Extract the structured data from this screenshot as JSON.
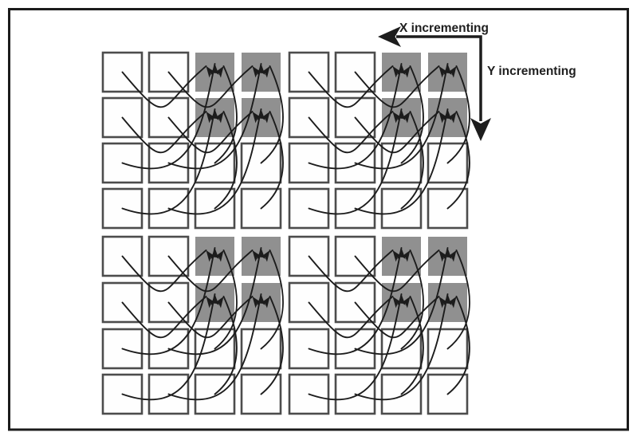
{
  "figure": {
    "background_color": "#ffffff",
    "border_color": "#1b1b1b"
  },
  "annotations": {
    "x_label": "X incrementing",
    "y_label": "Y incrementing",
    "x_arrow_direction": "left",
    "y_arrow_direction": "down",
    "color": "#1d1d1d"
  },
  "grid": {
    "rows": 8,
    "cols": 8,
    "quadrants": 4,
    "white_cell_fill": "#fefefe",
    "gray_cell_fill": "#909090",
    "cell_stroke": "#4c4c4c",
    "gray_cells": [
      [
        0,
        2
      ],
      [
        0,
        3
      ],
      [
        1,
        2
      ],
      [
        1,
        3
      ],
      [
        0,
        6
      ],
      [
        0,
        7
      ],
      [
        1,
        6
      ],
      [
        1,
        7
      ],
      [
        4,
        2
      ],
      [
        4,
        3
      ],
      [
        5,
        2
      ],
      [
        5,
        3
      ],
      [
        4,
        6
      ],
      [
        4,
        7
      ],
      [
        5,
        6
      ],
      [
        5,
        7
      ]
    ]
  },
  "mapping_arrows": {
    "color": "#1c1c1c",
    "quadrant_row_col_offsets": [
      [
        0,
        0
      ],
      [
        0,
        4
      ],
      [
        4,
        0
      ],
      [
        4,
        4
      ]
    ],
    "routes_per_quadrant": [
      {
        "from": [
          0,
          0
        ],
        "to": [
          0,
          2
        ],
        "slot": "left"
      },
      {
        "from": [
          0,
          1
        ],
        "to": [
          0,
          3
        ],
        "slot": "left"
      },
      {
        "from": [
          1,
          0
        ],
        "to": [
          1,
          2
        ],
        "slot": "left"
      },
      {
        "from": [
          1,
          1
        ],
        "to": [
          1,
          3
        ],
        "slot": "left"
      },
      {
        "from": [
          2,
          0
        ],
        "to": [
          0,
          2
        ],
        "slot": "center"
      },
      {
        "from": [
          2,
          1
        ],
        "to": [
          0,
          3
        ],
        "slot": "center"
      },
      {
        "from": [
          3,
          0
        ],
        "to": [
          1,
          2
        ],
        "slot": "center"
      },
      {
        "from": [
          3,
          1
        ],
        "to": [
          1,
          3
        ],
        "slot": "center"
      },
      {
        "from": [
          2,
          2
        ],
        "to": [
          0,
          2
        ],
        "slot": "right"
      },
      {
        "from": [
          2,
          3
        ],
        "to": [
          0,
          3
        ],
        "slot": "right"
      },
      {
        "from": [
          3,
          2
        ],
        "to": [
          1,
          2
        ],
        "slot": "right"
      },
      {
        "from": [
          3,
          3
        ],
        "to": [
          1,
          3
        ],
        "slot": "right"
      }
    ]
  }
}
